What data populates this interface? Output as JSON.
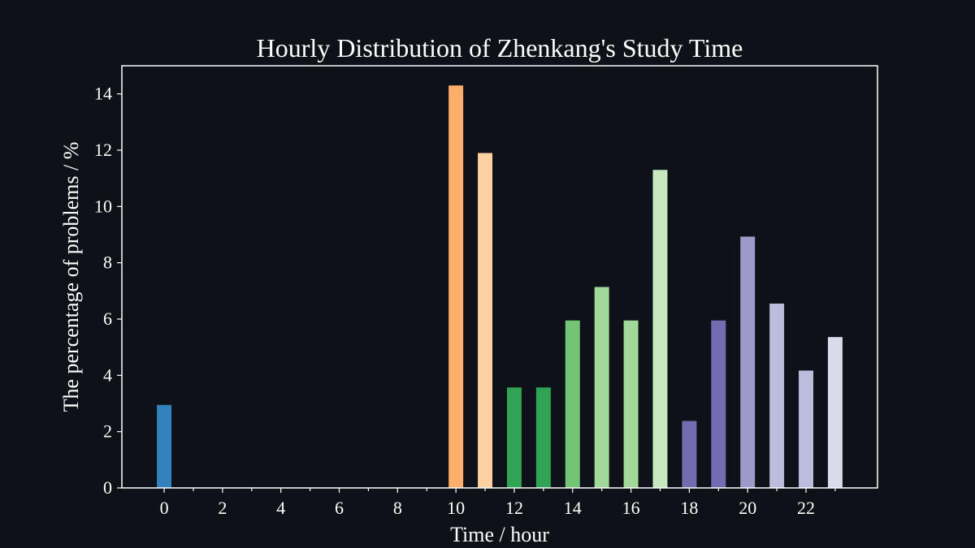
{
  "chart_data": {
    "type": "bar",
    "title": "Hourly Distribution of Zhenkang's Study Time",
    "xlabel": "Time / hour",
    "ylabel": "The percentage of problems / %",
    "x": [
      0,
      1,
      2,
      3,
      4,
      5,
      6,
      7,
      8,
      9,
      10,
      11,
      12,
      13,
      14,
      15,
      16,
      17,
      18,
      19,
      20,
      21,
      22,
      23
    ],
    "values": [
      2.95,
      0,
      0,
      0,
      0,
      0,
      0,
      0,
      0,
      0,
      14.3,
      11.9,
      3.57,
      3.57,
      5.95,
      7.14,
      5.95,
      11.3,
      2.38,
      5.95,
      8.93,
      6.55,
      4.17,
      5.36
    ],
    "colors": [
      "#3182bd",
      "#3182bd",
      "#3182bd",
      "#3182bd",
      "#3182bd",
      "#3182bd",
      "#3182bd",
      "#3182bd",
      "#3182bd",
      "#3182bd",
      "#fdae6b",
      "#fdd0a2",
      "#31a354",
      "#31a354",
      "#74c476",
      "#a1d99b",
      "#a1d99b",
      "#c7e9c0",
      "#756bb1",
      "#756bb1",
      "#9e9ac8",
      "#bcbddc",
      "#bcbddc",
      "#dadaeb"
    ],
    "xlim": [
      -1.45,
      24.45
    ],
    "ylim": [
      0,
      15
    ],
    "xticks": [
      0,
      2,
      4,
      6,
      8,
      10,
      12,
      14,
      16,
      18,
      20,
      22
    ],
    "xticks_minor": [
      1,
      3,
      5,
      7,
      9,
      11,
      13,
      15,
      17,
      19,
      21,
      23
    ],
    "yticks": [
      0,
      2,
      4,
      6,
      8,
      10,
      12,
      14
    ],
    "grid": false,
    "background": "#0e1117",
    "axis_color": "#ffffff"
  }
}
